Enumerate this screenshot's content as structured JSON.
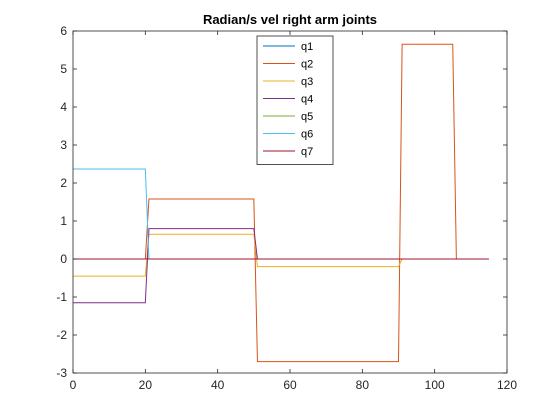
{
  "chart_data": {
    "type": "line",
    "title": "Radian/s vel right arm joints",
    "xlabel": "",
    "ylabel": "",
    "xlim": [
      0,
      120
    ],
    "ylim": [
      -3,
      6
    ],
    "xticks": [
      0,
      20,
      40,
      60,
      80,
      100,
      120
    ],
    "yticks": [
      -3,
      -2,
      -1,
      0,
      1,
      2,
      3,
      4,
      5,
      6
    ],
    "grid": false,
    "legend_position": "top-center",
    "series": [
      {
        "name": "q1",
        "color": "#0072BD",
        "x": [
          0,
          20,
          21,
          50,
          51,
          90,
          91,
          105,
          106,
          115
        ],
        "y": [
          0,
          0,
          0,
          0,
          0,
          0,
          0,
          0,
          0,
          0
        ]
      },
      {
        "name": "q2",
        "color": "#D95319",
        "x": [
          0,
          20,
          21,
          50,
          51,
          90,
          91,
          105,
          106,
          115
        ],
        "y": [
          0,
          0,
          1.58,
          1.58,
          -2.7,
          -2.7,
          5.65,
          5.65,
          0,
          0
        ]
      },
      {
        "name": "q3",
        "color": "#EDB120",
        "x": [
          0,
          20,
          21,
          50,
          51,
          90,
          91,
          115
        ],
        "y": [
          -0.45,
          -0.45,
          0.65,
          0.65,
          -0.2,
          -0.2,
          0,
          0
        ]
      },
      {
        "name": "q4",
        "color": "#7E2F8E",
        "x": [
          0,
          20,
          21,
          50,
          51,
          115
        ],
        "y": [
          -1.15,
          -1.15,
          0.8,
          0.8,
          0,
          0
        ]
      },
      {
        "name": "q5",
        "color": "#77AC30",
        "x": [
          0,
          115
        ],
        "y": [
          0,
          0
        ]
      },
      {
        "name": "q6",
        "color": "#4DBEEE",
        "x": [
          0,
          20,
          21,
          115
        ],
        "y": [
          2.37,
          2.37,
          0,
          0
        ]
      },
      {
        "name": "q7",
        "color": "#A2142F",
        "x": [
          0,
          115
        ],
        "y": [
          0,
          0
        ]
      }
    ]
  }
}
